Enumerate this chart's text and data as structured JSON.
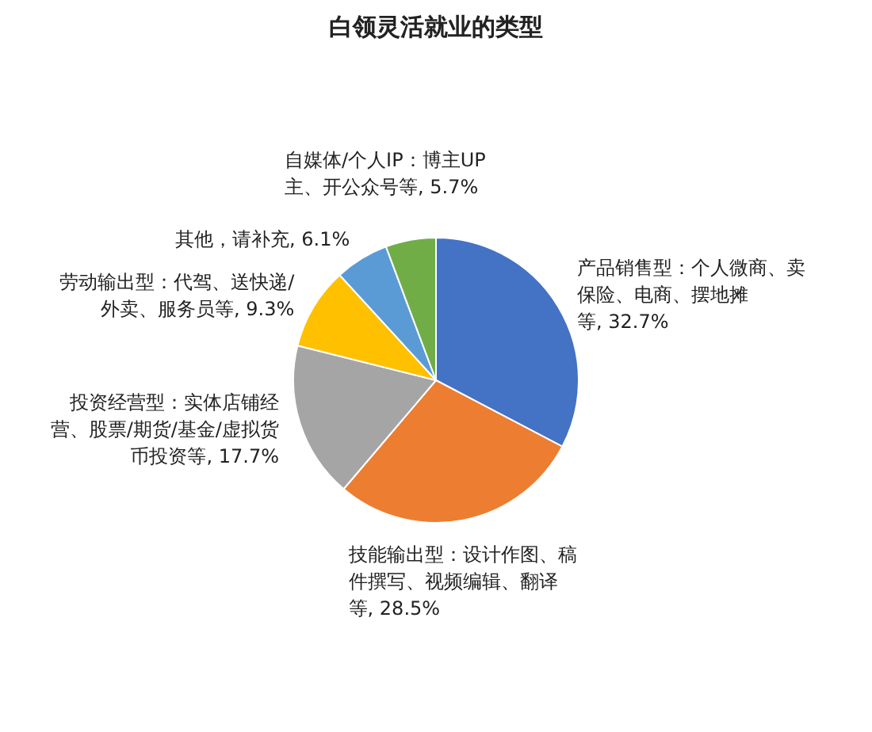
{
  "chart_data": {
    "type": "pie",
    "title": "白领灵活就业的类型",
    "categories": [
      "产品销售型：个人微商、卖保险、电商、摆地摊等",
      "技能输出型：设计作图、稿件撰写、视频编辑、翻译等",
      "投资经营型：实体店铺经营、股票/期货/基金/虚拟货币投资等",
      "劳动输出型：代驾、送快递/外卖、服务员等",
      "其他，请补充",
      "自媒体/个人IP：博主UP主、开公众号等"
    ],
    "values": [
      32.7,
      28.5,
      17.7,
      9.3,
      6.1,
      5.7
    ],
    "value_labels": [
      "32.7%",
      "28.5%",
      "17.7%",
      "9.3%",
      "6.1%",
      "5.7%"
    ],
    "colors": [
      "#4472c4",
      "#ed7d31",
      "#a5a5a5",
      "#ffc000",
      "#5b9bd5",
      "#70ad47"
    ]
  }
}
